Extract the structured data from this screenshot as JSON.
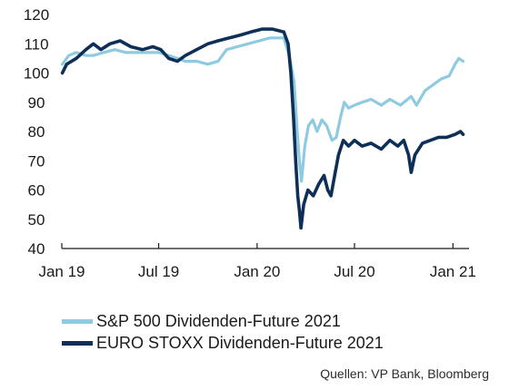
{
  "chart_data": {
    "type": "line",
    "title": "",
    "xlabel": "",
    "ylabel": "",
    "ylim": [
      40,
      120
    ],
    "yticks": [
      40,
      50,
      60,
      70,
      80,
      90,
      100,
      110,
      120
    ],
    "xlim": [
      "2019-01-01",
      "2021-01-31"
    ],
    "xticks": [
      {
        "date": "2019-01-01",
        "label": "Jan 19"
      },
      {
        "date": "2019-07-01",
        "label": "Jul 19"
      },
      {
        "date": "2020-01-01",
        "label": "Jan 20"
      },
      {
        "date": "2020-07-01",
        "label": "Jul 20"
      },
      {
        "date": "2021-01-01",
        "label": "Jan 21"
      }
    ],
    "grid": false,
    "legend_position": "bottom-left",
    "series": [
      {
        "name": "S&P 500 Dividenden-Future 2021",
        "color": "#8ecae0",
        "points": [
          [
            "2019-01-02",
            103
          ],
          [
            "2019-01-14",
            106
          ],
          [
            "2019-01-28",
            107
          ],
          [
            "2019-02-15",
            106
          ],
          [
            "2019-03-01",
            106
          ],
          [
            "2019-03-20",
            107
          ],
          [
            "2019-04-10",
            108
          ],
          [
            "2019-05-01",
            107
          ],
          [
            "2019-05-20",
            107
          ],
          [
            "2019-06-10",
            107
          ],
          [
            "2019-07-01",
            107
          ],
          [
            "2019-07-20",
            106
          ],
          [
            "2019-08-05",
            105
          ],
          [
            "2019-08-20",
            104
          ],
          [
            "2019-09-10",
            104
          ],
          [
            "2019-10-01",
            103
          ],
          [
            "2019-10-20",
            104
          ],
          [
            "2019-11-05",
            108
          ],
          [
            "2019-11-25",
            109
          ],
          [
            "2019-12-15",
            110
          ],
          [
            "2020-01-05",
            111
          ],
          [
            "2020-01-25",
            112
          ],
          [
            "2020-02-10",
            112
          ],
          [
            "2020-02-20",
            112
          ],
          [
            "2020-03-01",
            106
          ],
          [
            "2020-03-10",
            97
          ],
          [
            "2020-03-16",
            80
          ],
          [
            "2020-03-20",
            70
          ],
          [
            "2020-03-24",
            63
          ],
          [
            "2020-03-30",
            75
          ],
          [
            "2020-04-06",
            82
          ],
          [
            "2020-04-14",
            84
          ],
          [
            "2020-04-22",
            80
          ],
          [
            "2020-05-01",
            84
          ],
          [
            "2020-05-10",
            82
          ],
          [
            "2020-05-20",
            77
          ],
          [
            "2020-05-28",
            78
          ],
          [
            "2020-06-05",
            85
          ],
          [
            "2020-06-12",
            90
          ],
          [
            "2020-06-20",
            88
          ],
          [
            "2020-07-01",
            89
          ],
          [
            "2020-07-15",
            90
          ],
          [
            "2020-08-01",
            91
          ],
          [
            "2020-08-20",
            89
          ],
          [
            "2020-09-05",
            91
          ],
          [
            "2020-09-25",
            89
          ],
          [
            "2020-10-15",
            92
          ],
          [
            "2020-10-25",
            89
          ],
          [
            "2020-11-10",
            94
          ],
          [
            "2020-11-25",
            96
          ],
          [
            "2020-12-10",
            98
          ],
          [
            "2020-12-25",
            99
          ],
          [
            "2021-01-05",
            103
          ],
          [
            "2021-01-12",
            105
          ],
          [
            "2021-01-20",
            104
          ]
        ]
      },
      {
        "name": "EURO STOXX Dividenden-Future 2021",
        "color": "#0e2f57",
        "points": [
          [
            "2019-01-02",
            100
          ],
          [
            "2019-01-10",
            103
          ],
          [
            "2019-01-28",
            105
          ],
          [
            "2019-02-15",
            108
          ],
          [
            "2019-03-01",
            110
          ],
          [
            "2019-03-15",
            108
          ],
          [
            "2019-04-01",
            110
          ],
          [
            "2019-04-20",
            111
          ],
          [
            "2019-05-10",
            109
          ],
          [
            "2019-06-01",
            108
          ],
          [
            "2019-06-20",
            109
          ],
          [
            "2019-07-05",
            108
          ],
          [
            "2019-07-20",
            105
          ],
          [
            "2019-08-05",
            104
          ],
          [
            "2019-08-20",
            106
          ],
          [
            "2019-09-10",
            108
          ],
          [
            "2019-10-01",
            110
          ],
          [
            "2019-10-20",
            111
          ],
          [
            "2019-11-10",
            112
          ],
          [
            "2019-12-01",
            113
          ],
          [
            "2019-12-20",
            114
          ],
          [
            "2020-01-10",
            115
          ],
          [
            "2020-01-30",
            115
          ],
          [
            "2020-02-20",
            114
          ],
          [
            "2020-02-28",
            110
          ],
          [
            "2020-03-04",
            100
          ],
          [
            "2020-03-09",
            85
          ],
          [
            "2020-03-13",
            70
          ],
          [
            "2020-03-17",
            58
          ],
          [
            "2020-03-20",
            53
          ],
          [
            "2020-03-23",
            47
          ],
          [
            "2020-03-28",
            55
          ],
          [
            "2020-04-05",
            60
          ],
          [
            "2020-04-15",
            58
          ],
          [
            "2020-04-25",
            62
          ],
          [
            "2020-05-05",
            65
          ],
          [
            "2020-05-12",
            60
          ],
          [
            "2020-05-18",
            58
          ],
          [
            "2020-05-25",
            65
          ],
          [
            "2020-06-01",
            72
          ],
          [
            "2020-06-10",
            77
          ],
          [
            "2020-06-20",
            75
          ],
          [
            "2020-07-01",
            77
          ],
          [
            "2020-07-15",
            75
          ],
          [
            "2020-08-01",
            76
          ],
          [
            "2020-08-20",
            74
          ],
          [
            "2020-09-05",
            77
          ],
          [
            "2020-09-20",
            75
          ],
          [
            "2020-10-01",
            77
          ],
          [
            "2020-10-10",
            72
          ],
          [
            "2020-10-15",
            66
          ],
          [
            "2020-10-22",
            72
          ],
          [
            "2020-11-05",
            76
          ],
          [
            "2020-11-20",
            77
          ],
          [
            "2020-12-05",
            78
          ],
          [
            "2020-12-20",
            78
          ],
          [
            "2021-01-05",
            79
          ],
          [
            "2021-01-15",
            80
          ],
          [
            "2021-01-20",
            79
          ]
        ]
      }
    ]
  },
  "source_text": "Quellen: VP Bank, Bloomberg"
}
